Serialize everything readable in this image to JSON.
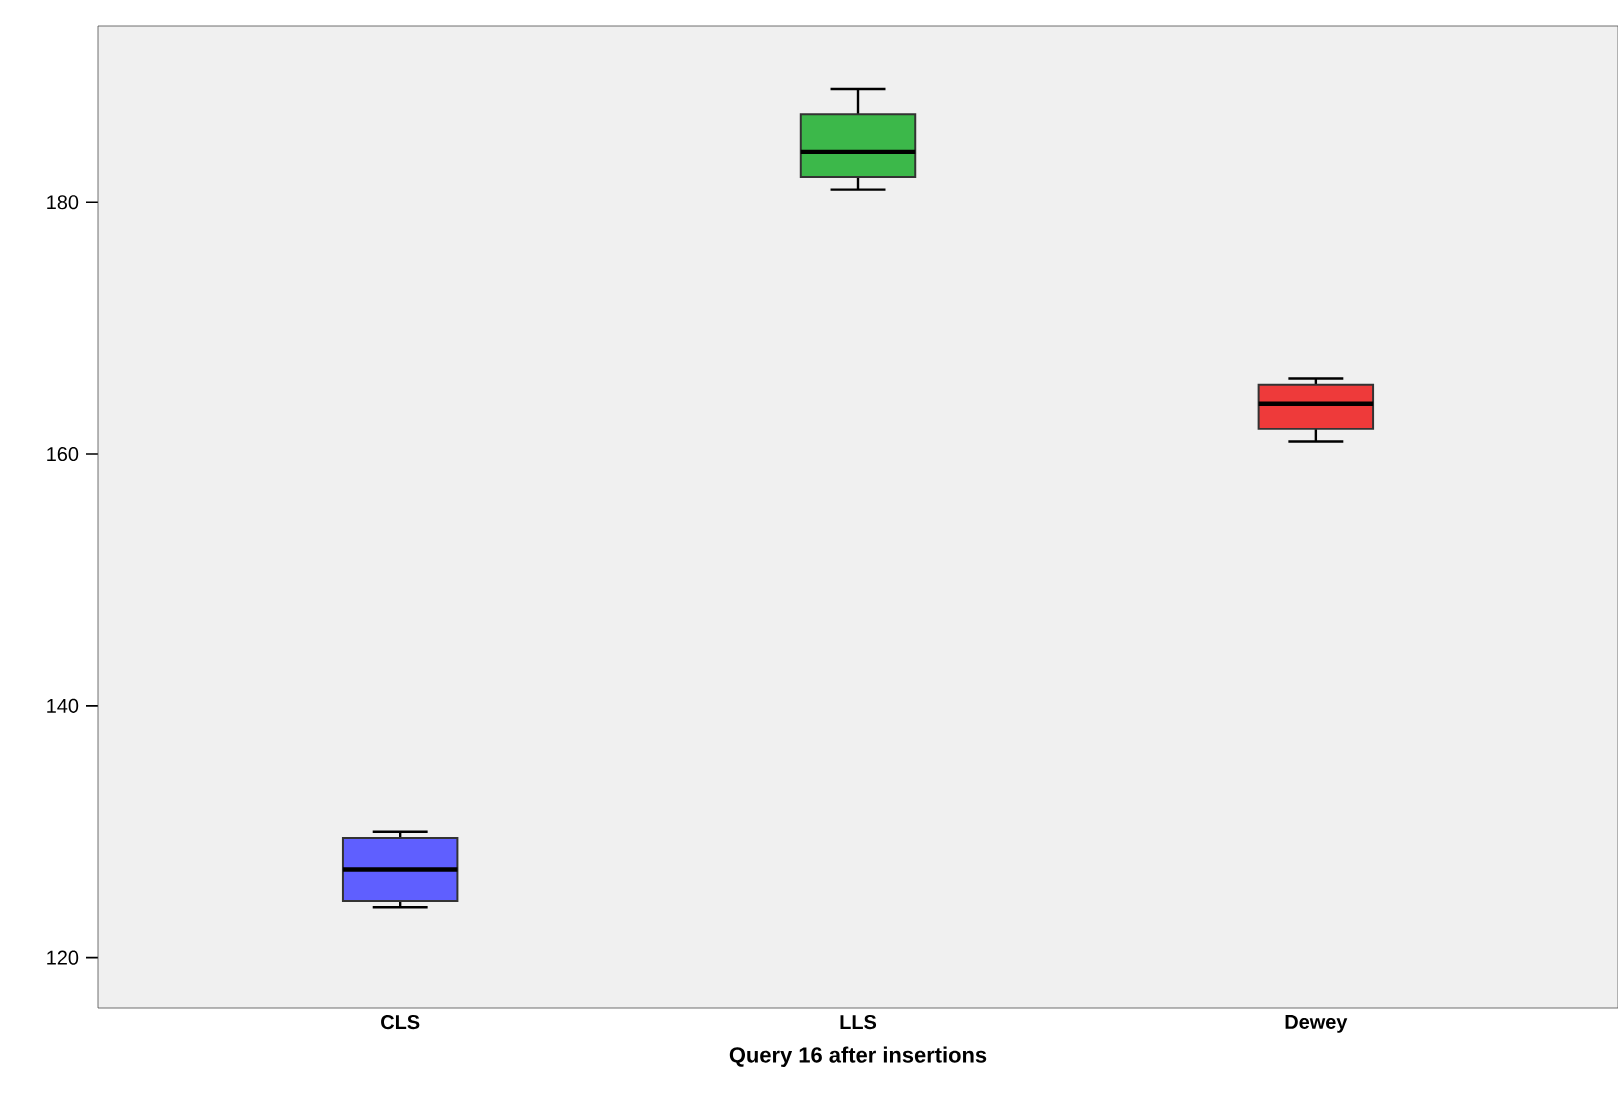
{
  "chart_data": {
    "type": "box",
    "xlabel": "**Query 16 after insertions**",
    "categories": [
      "**CLS**",
      "**LLS**",
      "**Dewey**"
    ],
    "boxes": [
      {
        "low": 124,
        "q1": 124.5,
        "median": 127,
        "q3": 129.5,
        "high": 130
      },
      {
        "low": 181,
        "q1": 182,
        "median": 184,
        "q3": 187,
        "high": 189
      },
      {
        "low": 161,
        "q1": 162,
        "median": 164,
        "q3": 165.5,
        "high": 166
      }
    ],
    "colors": [
      "#5f5fff",
      "#3cb84a",
      "#ee3a3a"
    ],
    "ylim": [
      116,
      194
    ],
    "yticks": [
      120,
      140,
      160,
      180
    ],
    "grid": false
  }
}
